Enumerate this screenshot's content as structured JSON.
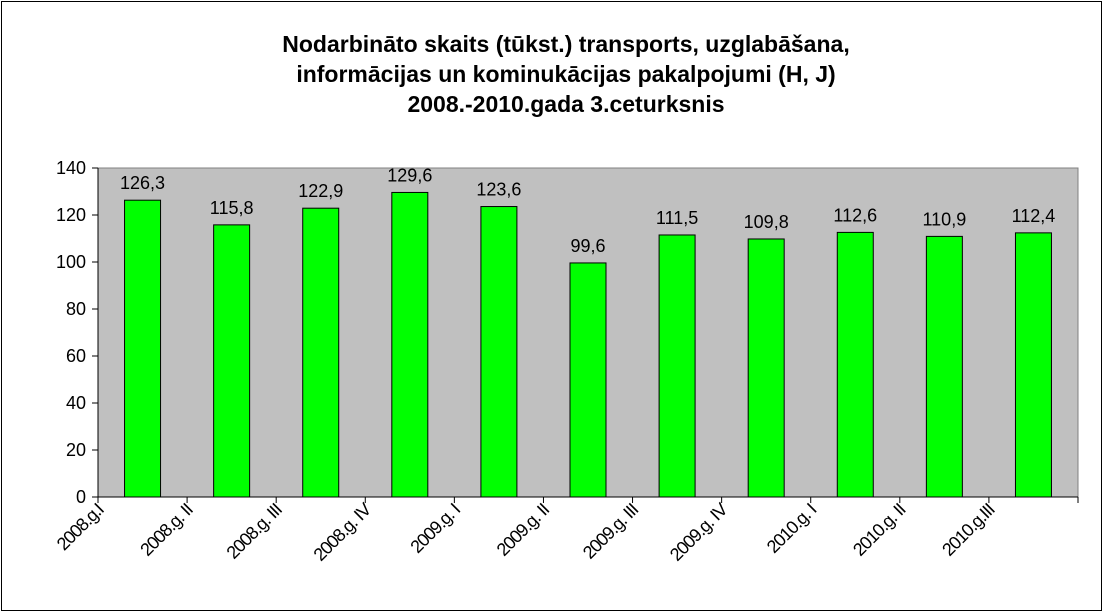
{
  "chart_data": {
    "type": "bar",
    "title": [
      "Nodarbināto skaits (tūkst.) transports, uzglabāšana,",
      "informācijas un kominukācijas pakalpojumi (H, J)",
      "2008.-2010.gada 3.ceturksnis"
    ],
    "categories": [
      "2008.g.I",
      "2008.g. II",
      "2008.g. III",
      "2008.g. IV",
      "2009.g. I",
      "2009.g. II",
      "2009.g. III",
      "2009.g. IV",
      "2010.g. I",
      "2010.g. II",
      "2010.g.III"
    ],
    "values": [
      126.3,
      115.8,
      122.9,
      129.6,
      123.6,
      99.6,
      111.5,
      109.8,
      112.6,
      110.9,
      112.4
    ],
    "value_labels": [
      "126,3",
      "115,8",
      "122,9",
      "129,6",
      "123,6",
      "99,6",
      "111,5",
      "109,8",
      "112,6",
      "110,9",
      "112,4"
    ],
    "color": "#00ff00",
    "ylim": [
      0,
      140
    ],
    "yticks": [
      0,
      20,
      40,
      60,
      80,
      100,
      120,
      140
    ],
    "grid": false
  }
}
